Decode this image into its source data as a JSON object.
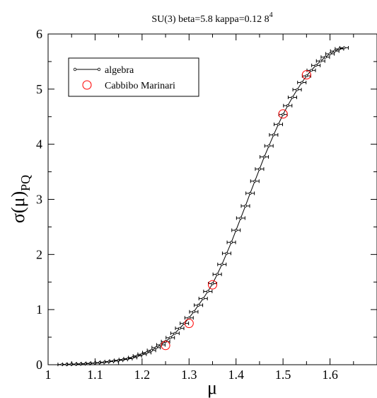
{
  "chart_data": {
    "type": "line",
    "title": "SU(3) beta=5.8 kappa=0.12 8",
    "title_superscript": "4",
    "xlabel": "μ",
    "ylabel_main": "σ(μ)",
    "ylabel_subscript": "PQ",
    "xlim": [
      1.0,
      1.7
    ],
    "ylim": [
      0,
      6
    ],
    "xticks": [
      "1",
      "1.1",
      "1.2",
      "1.3",
      "1.4",
      "1.5",
      "1.6"
    ],
    "yticks": [
      "0",
      "1",
      "2",
      "3",
      "4",
      "5",
      "6"
    ],
    "grid": false,
    "legend_position": "top-left",
    "series": [
      {
        "name": "algebra",
        "style": "line-with-small-circle-markers-and-error-bars",
        "color": "#000000",
        "x": [
          1.03,
          1.04,
          1.05,
          1.06,
          1.07,
          1.08,
          1.09,
          1.1,
          1.11,
          1.12,
          1.13,
          1.14,
          1.15,
          1.16,
          1.17,
          1.18,
          1.19,
          1.2,
          1.21,
          1.22,
          1.23,
          1.24,
          1.25,
          1.26,
          1.27,
          1.28,
          1.29,
          1.3,
          1.31,
          1.32,
          1.33,
          1.34,
          1.35,
          1.36,
          1.37,
          1.38,
          1.39,
          1.4,
          1.41,
          1.42,
          1.43,
          1.44,
          1.45,
          1.46,
          1.47,
          1.48,
          1.49,
          1.5,
          1.51,
          1.52,
          1.53,
          1.54,
          1.55,
          1.56,
          1.57,
          1.58,
          1.59,
          1.6,
          1.61,
          1.62,
          1.63
        ],
        "y": [
          0.005,
          0.007,
          0.009,
          0.012,
          0.016,
          0.02,
          0.025,
          0.03,
          0.038,
          0.047,
          0.057,
          0.068,
          0.08,
          0.094,
          0.11,
          0.13,
          0.16,
          0.19,
          0.22,
          0.26,
          0.31,
          0.36,
          0.42,
          0.49,
          0.57,
          0.66,
          0.75,
          0.85,
          0.96,
          1.08,
          1.2,
          1.33,
          1.47,
          1.64,
          1.82,
          2.02,
          2.22,
          2.44,
          2.66,
          2.88,
          3.11,
          3.33,
          3.55,
          3.77,
          3.97,
          4.17,
          4.36,
          4.54,
          4.7,
          4.85,
          4.99,
          5.12,
          5.24,
          5.34,
          5.43,
          5.51,
          5.58,
          5.64,
          5.69,
          5.73,
          5.75
        ]
      },
      {
        "name": "Cabbibo Marinari",
        "style": "open-circles",
        "color": "#ff0000",
        "x": [
          1.25,
          1.3,
          1.35,
          1.5,
          1.55
        ],
        "y": [
          0.35,
          0.75,
          1.45,
          4.55,
          5.26
        ]
      }
    ]
  }
}
